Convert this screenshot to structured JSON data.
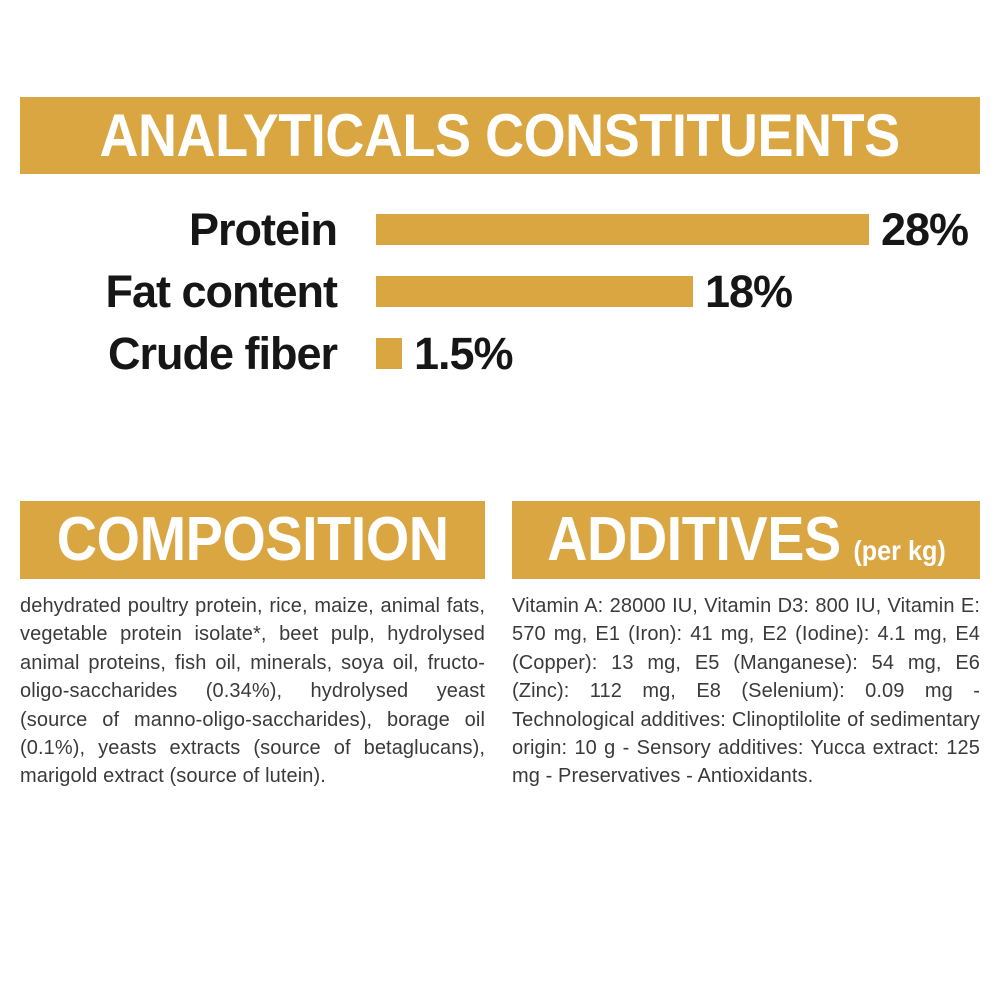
{
  "theme": {
    "gold": "#D9A642",
    "banner_text_color": "#ffffff",
    "chart_text_color": "#161616",
    "body_text_color": "#3a3a3a",
    "background": "#ffffff"
  },
  "chart_data": {
    "type": "bar",
    "orientation": "horizontal",
    "title": "ANALYTICALS CONSTITUENTS",
    "categories": [
      "Protein",
      "Fat content",
      "Crude fiber"
    ],
    "values": [
      28,
      18,
      1.5
    ],
    "value_labels": [
      "28%",
      "18%",
      "1.5%"
    ],
    "unit": "%",
    "xlim": [
      0,
      28
    ],
    "bar_color": "#D9A642",
    "grid": false,
    "legend": false
  },
  "composition": {
    "title": "COMPOSITION",
    "body": "dehydrated poultry protein, rice, maize, animal fats, vegetable protein isolate*, beet pulp, hydrolysed animal proteins, fish oil, minerals, soya oil, fructo-oligo-saccharides (0.34%), hydrolysed yeast (source of manno-oligo-saccharides), borage oil (0.1%), yeasts extracts (source of betaglucans), marigold extract (source of lutein)."
  },
  "additives": {
    "title": "ADDITIVES",
    "title_suffix": "(per kg)",
    "body": "Vitamin A: 28000 IU, Vitamin D3: 800 IU, Vitamin E: 570 mg, E1 (Iron): 41 mg, E2 (Iodine): 4.1 mg, E4 (Copper): 13 mg, E5 (Manganese): 54 mg, E6 (Zinc): 112 mg, E8 (Selenium): 0.09 mg - Technological additives: Clinoptilolite of sedimentary origin: 10 g - Sensory additives: Yucca extract: 125 mg - Preservatives - Antioxidants."
  }
}
